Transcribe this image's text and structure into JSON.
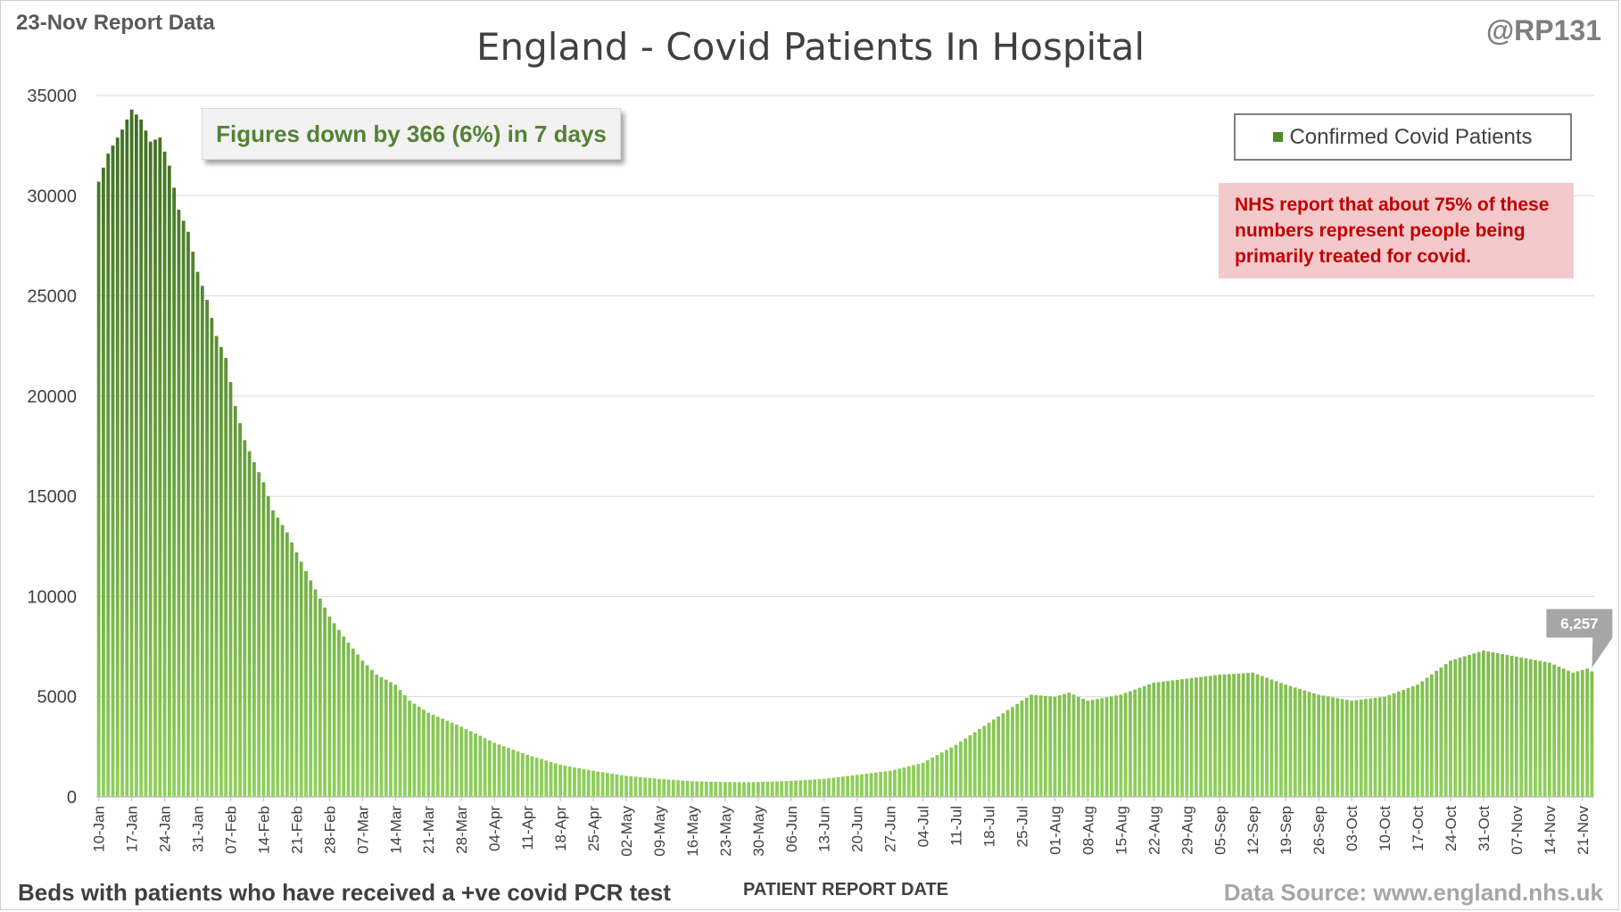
{
  "header": {
    "report_date": "23-Nov Report Data",
    "handle": "@RP131",
    "title": "England - Covid Patients In Hospital"
  },
  "callout": {
    "text": "Figures down by 366 (6%) in 7 days"
  },
  "legend": {
    "label": "Confirmed Covid Patients"
  },
  "note": {
    "text": "NHS report that about 75% of these numbers represent people being primarily treated for covid."
  },
  "footer": {
    "description": "Beds with patients who have received a +ve covid PCR test",
    "xaxis_title": "PATIENT REPORT DATE",
    "source": "Data Source: www.england.nhs.uk"
  },
  "colors": {
    "bar_top": "#3d6b1f",
    "bar_bottom": "#8fd05a",
    "grid": "#d9d9d9",
    "callout_text": "#548235",
    "note_bg": "#f4c9cb",
    "note_text": "#c00000",
    "last_label_bg": "#a6a6a6"
  },
  "chart_data": {
    "type": "bar",
    "title": "England - Covid Patients In Hospital",
    "xlabel": "PATIENT REPORT DATE",
    "ylabel": "",
    "ylim": [
      0,
      35000
    ],
    "yticks": [
      0,
      5000,
      10000,
      15000,
      20000,
      25000,
      30000,
      35000
    ],
    "ytick_labels": [
      "0",
      "5000",
      "10000",
      "15000",
      "20000",
      "25000",
      "30000",
      "35000"
    ],
    "x_start": "10-Jan",
    "x_end": "23-Nov",
    "xtick_labels": [
      "10-Jan",
      "17-Jan",
      "24-Jan",
      "31-Jan",
      "07-Feb",
      "14-Feb",
      "21-Feb",
      "28-Feb",
      "07-Mar",
      "14-Mar",
      "21-Mar",
      "28-Mar",
      "04-Apr",
      "11-Apr",
      "18-Apr",
      "25-Apr",
      "02-May",
      "09-May",
      "16-May",
      "23-May",
      "30-May",
      "06-Jun",
      "13-Jun",
      "20-Jun",
      "27-Jun",
      "04-Jul",
      "11-Jul",
      "18-Jul",
      "25-Jul",
      "01-Aug",
      "08-Aug",
      "15-Aug",
      "22-Aug",
      "29-Aug",
      "05-Sep",
      "12-Sep",
      "19-Sep",
      "26-Sep",
      "03-Oct",
      "10-Oct",
      "17-Oct",
      "24-Oct",
      "31-Oct",
      "07-Nov",
      "14-Nov",
      "21-Nov"
    ],
    "series": [
      {
        "name": "Confirmed Covid Patients",
        "anchors": [
          [
            "10-Jan",
            30700
          ],
          [
            "12-Jan",
            32100
          ],
          [
            "15-Jan",
            33300
          ],
          [
            "17-Jan",
            34300
          ],
          [
            "19-Jan",
            33800
          ],
          [
            "21-Jan",
            32700
          ],
          [
            "23-Jan",
            32900
          ],
          [
            "25-Jan",
            31500
          ],
          [
            "27-Jan",
            29300
          ],
          [
            "29-Jan",
            28200
          ],
          [
            "31-Jan",
            26200
          ],
          [
            "02-Feb",
            24800
          ],
          [
            "04-Feb",
            23000
          ],
          [
            "06-Feb",
            21900
          ],
          [
            "08-Feb",
            19500
          ],
          [
            "10-Feb",
            17800
          ],
          [
            "12-Feb",
            16700
          ],
          [
            "14-Feb",
            15700
          ],
          [
            "16-Feb",
            14300
          ],
          [
            "19-Feb",
            13200
          ],
          [
            "21-Feb",
            12200
          ],
          [
            "24-Feb",
            10800
          ],
          [
            "28-Feb",
            9000
          ],
          [
            "03-Mar",
            8000
          ],
          [
            "07-Mar",
            6800
          ],
          [
            "10-Mar",
            6100
          ],
          [
            "14-Mar",
            5600
          ],
          [
            "17-Mar",
            4800
          ],
          [
            "21-Mar",
            4200
          ],
          [
            "28-Mar",
            3500
          ],
          [
            "04-Apr",
            2700
          ],
          [
            "11-Apr",
            2100
          ],
          [
            "18-Apr",
            1600
          ],
          [
            "25-Apr",
            1300
          ],
          [
            "02-May",
            1050
          ],
          [
            "09-May",
            900
          ],
          [
            "16-May",
            780
          ],
          [
            "23-May",
            740
          ],
          [
            "30-May",
            740
          ],
          [
            "06-Jun",
            800
          ],
          [
            "13-Jun",
            900
          ],
          [
            "20-Jun",
            1100
          ],
          [
            "27-Jun",
            1300
          ],
          [
            "04-Jul",
            1700
          ],
          [
            "11-Jul",
            2600
          ],
          [
            "18-Jul",
            3700
          ],
          [
            "25-Jul",
            4800
          ],
          [
            "27-Jul",
            5100
          ],
          [
            "01-Aug",
            5000
          ],
          [
            "04-Aug",
            5200
          ],
          [
            "08-Aug",
            4800
          ],
          [
            "15-Aug",
            5100
          ],
          [
            "22-Aug",
            5700
          ],
          [
            "29-Aug",
            5900
          ],
          [
            "05-Sep",
            6100
          ],
          [
            "12-Sep",
            6200
          ],
          [
            "19-Sep",
            5600
          ],
          [
            "26-Sep",
            5100
          ],
          [
            "03-Oct",
            4800
          ],
          [
            "10-Oct",
            5000
          ],
          [
            "17-Oct",
            5600
          ],
          [
            "24-Oct",
            6800
          ],
          [
            "31-Oct",
            7300
          ],
          [
            "07-Nov",
            7000
          ],
          [
            "14-Nov",
            6700
          ],
          [
            "19-Nov",
            6200
          ],
          [
            "22-Nov",
            6400
          ],
          [
            "23-Nov",
            6257
          ]
        ]
      }
    ],
    "last_value_label": "6,257",
    "grid": true,
    "legend_position": "top-right"
  }
}
